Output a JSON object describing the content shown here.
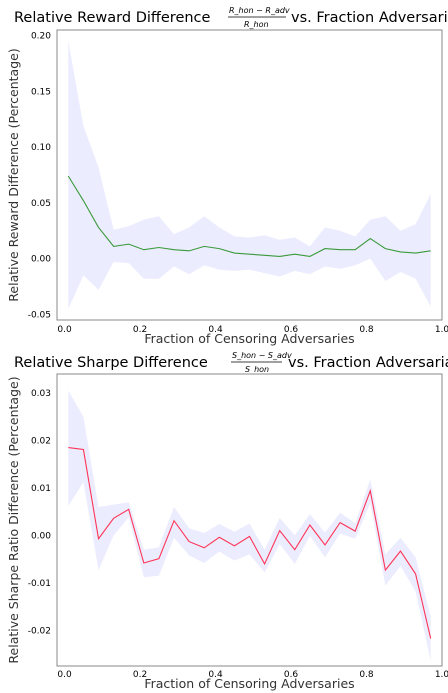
{
  "chart_data": [
    {
      "type": "line",
      "title_prefix": "Relative Reward Difference",
      "title_suffix": "vs. Fraction Adversarial",
      "fraction_numerator": "R_hon − R_adv",
      "fraction_denominator": "R_hon",
      "xlabel": "Fraction of Censoring Adversaries",
      "ylabel": "Relative Reward Difference (Percentage)",
      "xlim": [
        -0.02,
        1.0
      ],
      "ylim": [
        -0.055,
        0.205
      ],
      "xticks": [
        0.0,
        0.2,
        0.4,
        0.6,
        0.8,
        1.0
      ],
      "xtick_labels": [
        "0.0",
        "0.2",
        "0.4",
        "0.6",
        "0.8",
        "1.0"
      ],
      "yticks": [
        -0.05,
        0.0,
        0.05,
        0.1,
        0.15,
        0.2
      ],
      "ytick_labels": [
        "-0.05",
        "0.00",
        "0.05",
        "0.10",
        "0.15",
        "0.20"
      ],
      "line_color": "#3a9a3a",
      "band_color": "#ececff",
      "series": [
        {
          "x": [
            0.01,
            0.05,
            0.09,
            0.13,
            0.17,
            0.21,
            0.25,
            0.29,
            0.33,
            0.37,
            0.41,
            0.45,
            0.49,
            0.53,
            0.57,
            0.61,
            0.65,
            0.69,
            0.73,
            0.77,
            0.81,
            0.85,
            0.89,
            0.93,
            0.97
          ],
          "y": [
            0.074,
            0.052,
            0.028,
            0.011,
            0.013,
            0.008,
            0.01,
            0.008,
            0.007,
            0.011,
            0.009,
            0.005,
            0.004,
            0.003,
            0.002,
            0.004,
            0.002,
            0.009,
            0.008,
            0.008,
            0.018,
            0.009,
            0.006,
            0.005,
            0.007
          ],
          "lower": [
            -0.045,
            -0.015,
            -0.028,
            -0.003,
            -0.004,
            -0.018,
            -0.018,
            -0.007,
            -0.014,
            -0.006,
            -0.01,
            -0.011,
            -0.01,
            -0.013,
            -0.016,
            -0.011,
            -0.014,
            -0.007,
            -0.009,
            -0.006,
            0.0,
            -0.02,
            -0.012,
            -0.018,
            -0.043
          ],
          "upper": [
            0.195,
            0.119,
            0.082,
            0.026,
            0.029,
            0.035,
            0.038,
            0.022,
            0.028,
            0.038,
            0.028,
            0.02,
            0.019,
            0.021,
            0.017,
            0.019,
            0.011,
            0.028,
            0.025,
            0.02,
            0.035,
            0.038,
            0.025,
            0.031,
            0.058
          ]
        }
      ]
    },
    {
      "type": "line",
      "title_prefix": "Relative Sharpe Difference",
      "title_suffix": "vs. Fraction Adversarial",
      "fraction_numerator": "S_hon − S_adv",
      "fraction_denominator": "S_hon",
      "xlabel": "Fraction of Censoring Adversaries",
      "ylabel": "Relative Sharpe Ratio Difference (Percentage)",
      "xlim": [
        -0.02,
        1.0
      ],
      "ylim": [
        -0.0275,
        0.034
      ],
      "xticks": [
        0.0,
        0.2,
        0.4,
        0.6,
        0.8,
        1.0
      ],
      "xtick_labels": [
        "0.0",
        "0.2",
        "0.4",
        "0.6",
        "0.8",
        "1.0"
      ],
      "yticks": [
        -0.02,
        -0.01,
        0.0,
        0.01,
        0.02,
        0.03
      ],
      "ytick_labels": [
        "-0.02",
        "-0.01",
        "0.00",
        "0.01",
        "0.02",
        "0.03"
      ],
      "line_color": "#ff3355",
      "band_color": "#ececff",
      "series": [
        {
          "x": [
            0.01,
            0.05,
            0.09,
            0.13,
            0.17,
            0.21,
            0.25,
            0.29,
            0.33,
            0.37,
            0.41,
            0.45,
            0.49,
            0.53,
            0.57,
            0.61,
            0.65,
            0.69,
            0.73,
            0.77,
            0.81,
            0.85,
            0.89,
            0.93,
            0.97
          ],
          "y": [
            0.0185,
            0.0181,
            -0.0007,
            0.0036,
            0.0055,
            -0.0058,
            -0.0049,
            0.0031,
            -0.0013,
            -0.0026,
            -0.0004,
            -0.0022,
            -0.0002,
            -0.006,
            0.001,
            -0.003,
            0.0022,
            -0.002,
            0.0027,
            0.0009,
            0.0094,
            -0.0073,
            -0.0033,
            -0.0081,
            -0.0217
          ],
          "lower": [
            0.0062,
            0.0112,
            -0.0073,
            0.0,
            0.0038,
            -0.0088,
            -0.0085,
            -0.0005,
            -0.0042,
            -0.0058,
            -0.0034,
            -0.0053,
            -0.004,
            -0.0078,
            -0.0018,
            -0.006,
            -0.0001,
            -0.0046,
            0.0004,
            -0.0007,
            0.0068,
            -0.0106,
            -0.0064,
            -0.0118,
            -0.0264
          ],
          "upper": [
            0.0305,
            0.025,
            0.006,
            0.0065,
            0.007,
            -0.003,
            -0.0025,
            0.006,
            0.0015,
            0.0005,
            0.0024,
            0.0008,
            0.0025,
            -0.003,
            0.0037,
            0.0,
            0.0045,
            0.0006,
            0.0048,
            0.0026,
            0.0118,
            -0.004,
            -0.0005,
            -0.0046,
            -0.0171
          ]
        }
      ]
    }
  ]
}
